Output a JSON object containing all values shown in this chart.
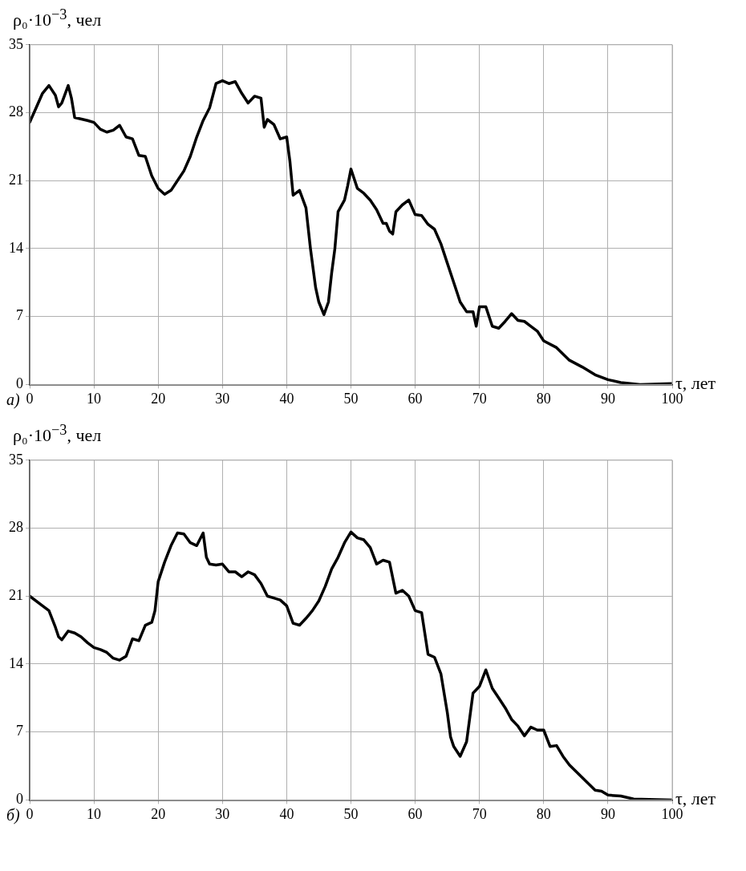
{
  "chart_data": [
    {
      "type": "line",
      "ylabel": "ρ₀·10$^{−3}$, чел",
      "xlabel": "τ, лет",
      "annotations": [
        "а)"
      ],
      "xlim": [
        0,
        100
      ],
      "ylim": [
        0,
        35
      ],
      "xticks": [
        0,
        10,
        20,
        30,
        40,
        50,
        60,
        70,
        80,
        90,
        100
      ],
      "yticks": [
        0,
        7,
        14,
        21,
        28,
        35
      ],
      "grid": true,
      "marker": "none",
      "line_style": "solid",
      "series": [
        {
          "color": "#000000",
          "x": [
            0,
            1,
            2,
            3,
            4,
            4.5,
            5,
            6,
            6.5,
            7,
            9,
            10,
            11,
            12,
            13,
            14,
            15,
            16,
            17,
            18,
            19,
            20,
            21,
            22,
            23,
            24,
            25,
            26,
            27,
            28,
            29,
            30,
            31,
            32,
            33,
            34,
            35,
            36,
            36.5,
            37,
            38,
            39,
            40,
            40.5,
            41,
            42,
            43,
            43.7,
            44.5,
            45,
            45.8,
            46.5,
            47,
            47.5,
            48,
            49,
            49.5,
            50,
            51,
            52,
            53,
            54,
            55,
            55.5,
            56,
            56.5,
            57,
            58,
            59,
            60,
            61,
            62,
            63,
            64,
            65,
            66,
            67,
            68,
            69,
            69.5,
            70,
            71,
            72,
            73,
            74,
            75,
            76,
            77,
            78,
            79,
            80,
            82,
            84,
            86,
            88,
            90,
            92,
            95,
            100
          ],
          "values": [
            27,
            28.5,
            30,
            30.8,
            29.8,
            28.6,
            29,
            30.8,
            29.5,
            27.5,
            27.2,
            27,
            26.3,
            26,
            26.2,
            26.7,
            25.5,
            25.3,
            23.6,
            23.5,
            21.5,
            20.2,
            19.6,
            20,
            21,
            22,
            23.5,
            25.5,
            27.2,
            28.5,
            31,
            31.3,
            31,
            31.2,
            30,
            29,
            29.7,
            29.5,
            26.5,
            27.3,
            26.8,
            25.3,
            25.5,
            23,
            19.5,
            20,
            18.2,
            14,
            10,
            8.5,
            7.2,
            8.5,
            11.5,
            14,
            17.8,
            19,
            20.5,
            22.2,
            20.2,
            19.7,
            19,
            18,
            16.6,
            16.6,
            15.8,
            15.5,
            17.8,
            18.5,
            19,
            17.5,
            17.4,
            16.5,
            16,
            14.5,
            12.5,
            10.5,
            8.5,
            7.5,
            7.5,
            6,
            8,
            8,
            6,
            5.8,
            6.5,
            7.3,
            6.6,
            6.5,
            6,
            5.5,
            4.5,
            3.8,
            2.5,
            1.8,
            1,
            0.5,
            0.2,
            0,
            0.1
          ]
        }
      ]
    },
    {
      "type": "line",
      "ylabel": "ρ₀·10$^{−3}$, чел",
      "xlabel": "τ, лет",
      "annotations": [
        "б)"
      ],
      "xlim": [
        0,
        100
      ],
      "ylim": [
        0,
        35
      ],
      "xticks": [
        0,
        10,
        20,
        30,
        40,
        50,
        60,
        70,
        80,
        90,
        100
      ],
      "yticks": [
        0,
        7,
        14,
        21,
        28,
        35
      ],
      "grid": true,
      "marker": "none",
      "line_style": "solid",
      "series": [
        {
          "color": "#000000",
          "x": [
            0,
            2,
            3,
            4,
            4.5,
            5,
            6,
            7,
            8,
            9,
            10,
            11,
            12,
            13,
            14,
            15,
            16,
            17,
            18,
            19,
            19.5,
            20,
            21,
            22,
            23,
            24,
            25,
            26,
            27,
            27.5,
            28,
            29,
            30,
            31,
            32,
            33,
            34,
            35,
            36,
            37,
            38,
            39,
            40,
            41,
            42,
            43,
            44,
            45,
            46,
            47,
            48,
            49,
            50,
            51,
            52,
            53,
            54,
            55,
            56,
            57,
            58,
            59,
            60,
            61,
            62,
            63,
            64,
            65,
            65.5,
            66,
            67,
            68,
            68.5,
            69,
            70,
            71,
            72,
            73,
            74,
            75,
            76,
            77,
            78,
            79,
            80,
            81,
            82,
            83,
            84,
            86,
            88,
            89,
            90,
            92,
            94,
            100
          ],
          "values": [
            21,
            20,
            19.5,
            17.8,
            16.8,
            16.5,
            17.4,
            17.2,
            16.8,
            16.2,
            15.7,
            15.5,
            15.2,
            14.6,
            14.4,
            14.8,
            16.6,
            16.4,
            18,
            18.3,
            19.5,
            22.5,
            24.5,
            26.2,
            27.5,
            27.4,
            26.5,
            26.2,
            27.5,
            25,
            24.3,
            24.2,
            24.3,
            23.5,
            23.5,
            23,
            23.5,
            23.2,
            22.3,
            21,
            20.8,
            20.6,
            20,
            18.2,
            18,
            18.7,
            19.5,
            20.5,
            22,
            23.8,
            25,
            26.5,
            27.6,
            27,
            26.8,
            26,
            24.3,
            24.7,
            24.5,
            21.3,
            21.6,
            21,
            19.5,
            19.3,
            15,
            14.7,
            13,
            9,
            6.5,
            5.5,
            4.5,
            6,
            8.5,
            11,
            11.7,
            13.4,
            11.5,
            10.5,
            9.5,
            8.3,
            7.6,
            6.6,
            7.5,
            7.2,
            7.2,
            5.5,
            5.6,
            4.5,
            3.6,
            2.3,
            1,
            0.9,
            0.5,
            0.4,
            0.1,
            0
          ]
        }
      ]
    }
  ]
}
